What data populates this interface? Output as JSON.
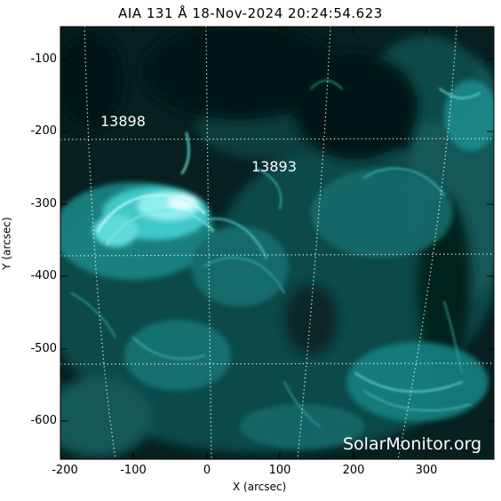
{
  "title": "AIA 131 Å 18-Nov-2024 20:24:54.623",
  "x_axis": {
    "label": "X (arcsec)",
    "ticks": [
      "-200",
      "-100",
      "0",
      "100",
      "200",
      "300"
    ]
  },
  "y_axis": {
    "label": "Y (arcsec)",
    "ticks": [
      "-100",
      "-200",
      "-300",
      "-400",
      "-500",
      "-600"
    ]
  },
  "active_regions": [
    "13898",
    "13893"
  ],
  "watermark": "SolarMonitor.org",
  "colors": {
    "plot_background": "#071f1f",
    "plasma_dim": "#0f4e4e",
    "plasma_mid": "#1fa3a3",
    "plasma_bright": "#9ff4f4",
    "grid": "#ffffff"
  }
}
